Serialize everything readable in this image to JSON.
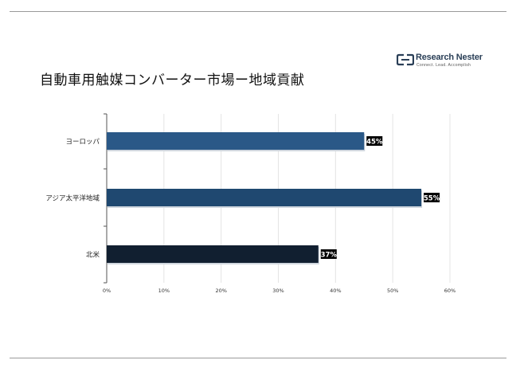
{
  "logo": {
    "name": "Research Nester",
    "tagline": "Connect. Lead. Accomplish"
  },
  "chart_data": {
    "type": "bar",
    "orientation": "horizontal",
    "title": "自動車用触媒コンバーター市場ー地域貢献",
    "categories": [
      "ヨーロッパ",
      "アジア太平洋地域",
      "北米"
    ],
    "values": [
      45,
      55,
      37
    ],
    "data_labels": [
      "45%",
      "55%",
      "37%"
    ],
    "bar_colors": [
      "#2a5887",
      "#1f4870",
      "#111f30"
    ],
    "xlim": [
      0,
      60
    ],
    "x_ticks": [
      0,
      10,
      20,
      30,
      40,
      50,
      60
    ],
    "x_tick_labels": [
      "0%",
      "10%",
      "20%",
      "30%",
      "40%",
      "50%",
      "60%"
    ],
    "grid": true,
    "legend": "none"
  }
}
